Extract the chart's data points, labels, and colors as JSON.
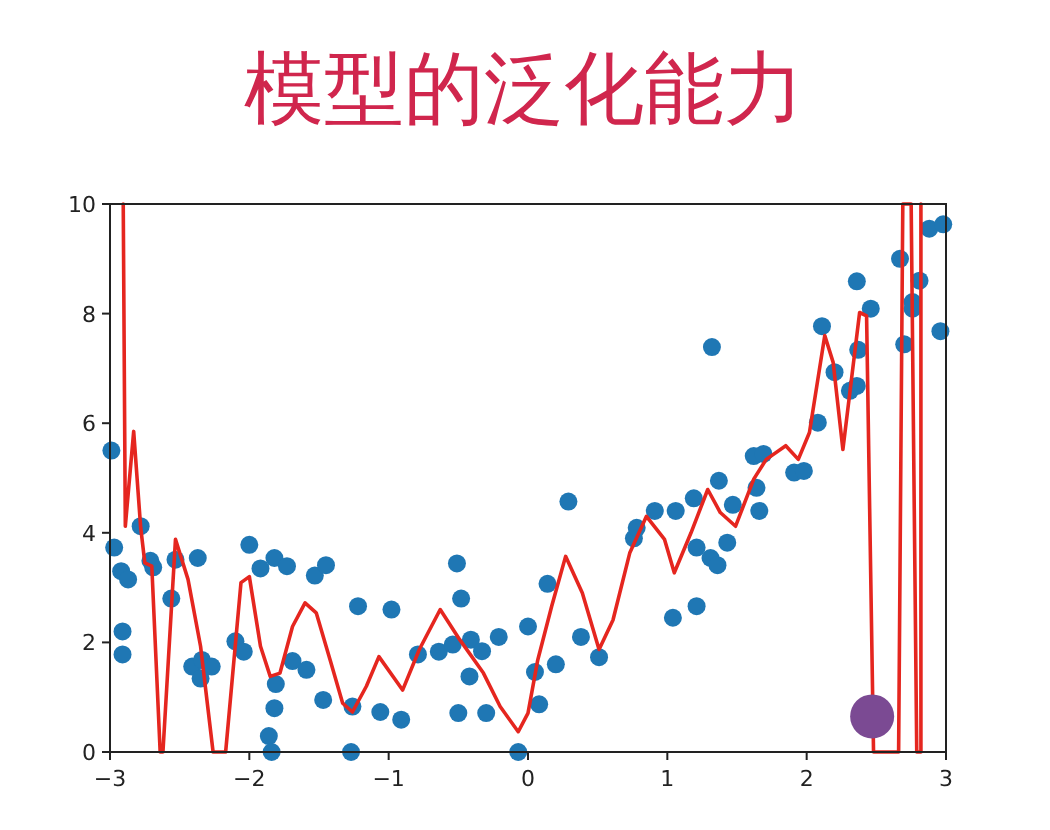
{
  "chart_data": {
    "type": "scatter",
    "title": "模型的泛化能力",
    "xlim": [
      -3,
      3
    ],
    "ylim": [
      0,
      10
    ],
    "xticks": [
      -3,
      -2,
      -1,
      0,
      1,
      2,
      3
    ],
    "yticks": [
      0,
      2,
      4,
      6,
      8,
      10
    ],
    "series": [
      {
        "marker": "circle",
        "color": "#1f77b4",
        "x": [
          -2.99,
          -2.97,
          -2.92,
          -2.87,
          -2.91,
          -2.91,
          -2.78,
          -2.71,
          -2.69,
          -2.56,
          -2.53,
          -2.37,
          -2.41,
          -2.34,
          -2.35,
          -2.27,
          -2.1,
          -2.04,
          -2.0,
          -1.92,
          -1.82,
          -1.73,
          -1.81,
          -1.82,
          -1.86,
          -1.84,
          -1.69,
          -1.59,
          -1.53,
          -1.45,
          -1.47,
          -1.26,
          -1.27,
          -1.22,
          -1.06,
          -0.98,
          -0.91,
          -0.79,
          -0.64,
          -0.54,
          -0.51,
          -0.48,
          -0.5,
          -0.42,
          -0.41,
          -0.33,
          -0.3,
          -0.21,
          -0.07,
          0.0,
          0.05,
          0.08,
          0.14,
          0.2,
          0.29,
          0.38,
          0.51,
          0.76,
          0.78,
          0.91,
          1.04,
          1.06,
          1.21,
          1.21,
          1.19,
          1.32,
          1.31,
          1.36,
          1.37,
          1.43,
          1.47,
          1.64,
          1.66,
          1.62,
          1.69,
          1.91,
          1.98,
          2.08,
          2.11,
          2.2,
          2.31,
          2.36,
          2.37,
          2.36,
          2.46,
          2.67,
          2.7,
          2.76,
          2.76,
          2.81,
          2.88,
          2.98,
          2.96
        ],
        "values": [
          5.5,
          3.73,
          3.3,
          3.15,
          2.2,
          1.78,
          4.12,
          3.49,
          3.37,
          2.8,
          3.51,
          3.54,
          1.56,
          1.68,
          1.34,
          1.56,
          2.02,
          1.83,
          3.78,
          3.35,
          3.54,
          3.39,
          1.24,
          0.8,
          0.29,
          0.0,
          1.66,
          1.5,
          3.22,
          3.41,
          0.95,
          0.83,
          0.0,
          2.66,
          0.73,
          2.6,
          0.59,
          1.78,
          1.83,
          1.96,
          3.44,
          2.8,
          0.71,
          1.38,
          2.05,
          1.84,
          0.71,
          2.1,
          0.0,
          2.29,
          1.46,
          0.87,
          3.07,
          1.6,
          4.57,
          2.1,
          1.73,
          3.9,
          4.09,
          4.4,
          2.45,
          4.4,
          2.66,
          3.73,
          4.63,
          7.39,
          3.54,
          3.41,
          4.95,
          3.82,
          4.51,
          4.82,
          4.4,
          5.4,
          5.44,
          5.1,
          5.13,
          6.01,
          7.77,
          6.93,
          6.59,
          6.68,
          7.34,
          8.59,
          8.09,
          9.0,
          7.44,
          8.21,
          8.09,
          8.6,
          9.55,
          9.63,
          7.68
        ]
      },
      {
        "type": "line",
        "color": "#e5261f",
        "x": [
          -2.905,
          -2.89,
          -2.83,
          -2.78,
          -2.75,
          -2.7,
          -2.64,
          -2.62,
          -2.53,
          -2.44,
          -2.35,
          -2.26,
          -2.17,
          -2.06,
          -2.0,
          -1.92,
          -1.85,
          -1.78,
          -1.69,
          -1.6,
          -1.52,
          -1.42,
          -1.33,
          -1.26,
          -1.16,
          -1.07,
          -0.9,
          -0.78,
          -0.63,
          -0.49,
          -0.32,
          -0.2,
          -0.07,
          0.0,
          0.07,
          0.17,
          0.27,
          0.39,
          0.51,
          0.61,
          0.73,
          0.85,
          0.98,
          1.05,
          1.17,
          1.29,
          1.38,
          1.49,
          1.62,
          1.71,
          1.85,
          1.94,
          2.02,
          2.13,
          2.19,
          2.26,
          2.38,
          2.43,
          2.48,
          2.66,
          2.69,
          2.75,
          2.79,
          2.82,
          2.82
        ],
        "values": [
          10,
          4.12,
          5.85,
          4.1,
          3.45,
          3.39,
          0,
          0,
          3.88,
          3.15,
          1.93,
          0,
          0,
          3.09,
          3.2,
          1.93,
          1.38,
          1.44,
          2.29,
          2.72,
          2.54,
          1.68,
          0.89,
          0.73,
          1.2,
          1.74,
          1.13,
          1.87,
          2.6,
          2.05,
          1.44,
          0.83,
          0.37,
          0.71,
          1.68,
          2.66,
          3.57,
          2.9,
          1.87,
          2.41,
          3.63,
          4.3,
          3.88,
          3.27,
          4.0,
          4.79,
          4.37,
          4.12,
          4.98,
          5.34,
          5.59,
          5.34,
          5.83,
          7.6,
          7.11,
          5.52,
          8.02,
          7.96,
          0,
          0,
          10,
          10,
          0,
          0,
          10
        ]
      },
      {
        "type": "bubble",
        "color": "#7b4a93",
        "x": [
          2.47
        ],
        "values": [
          0.65
        ],
        "sizes": [
          1
        ]
      }
    ]
  }
}
